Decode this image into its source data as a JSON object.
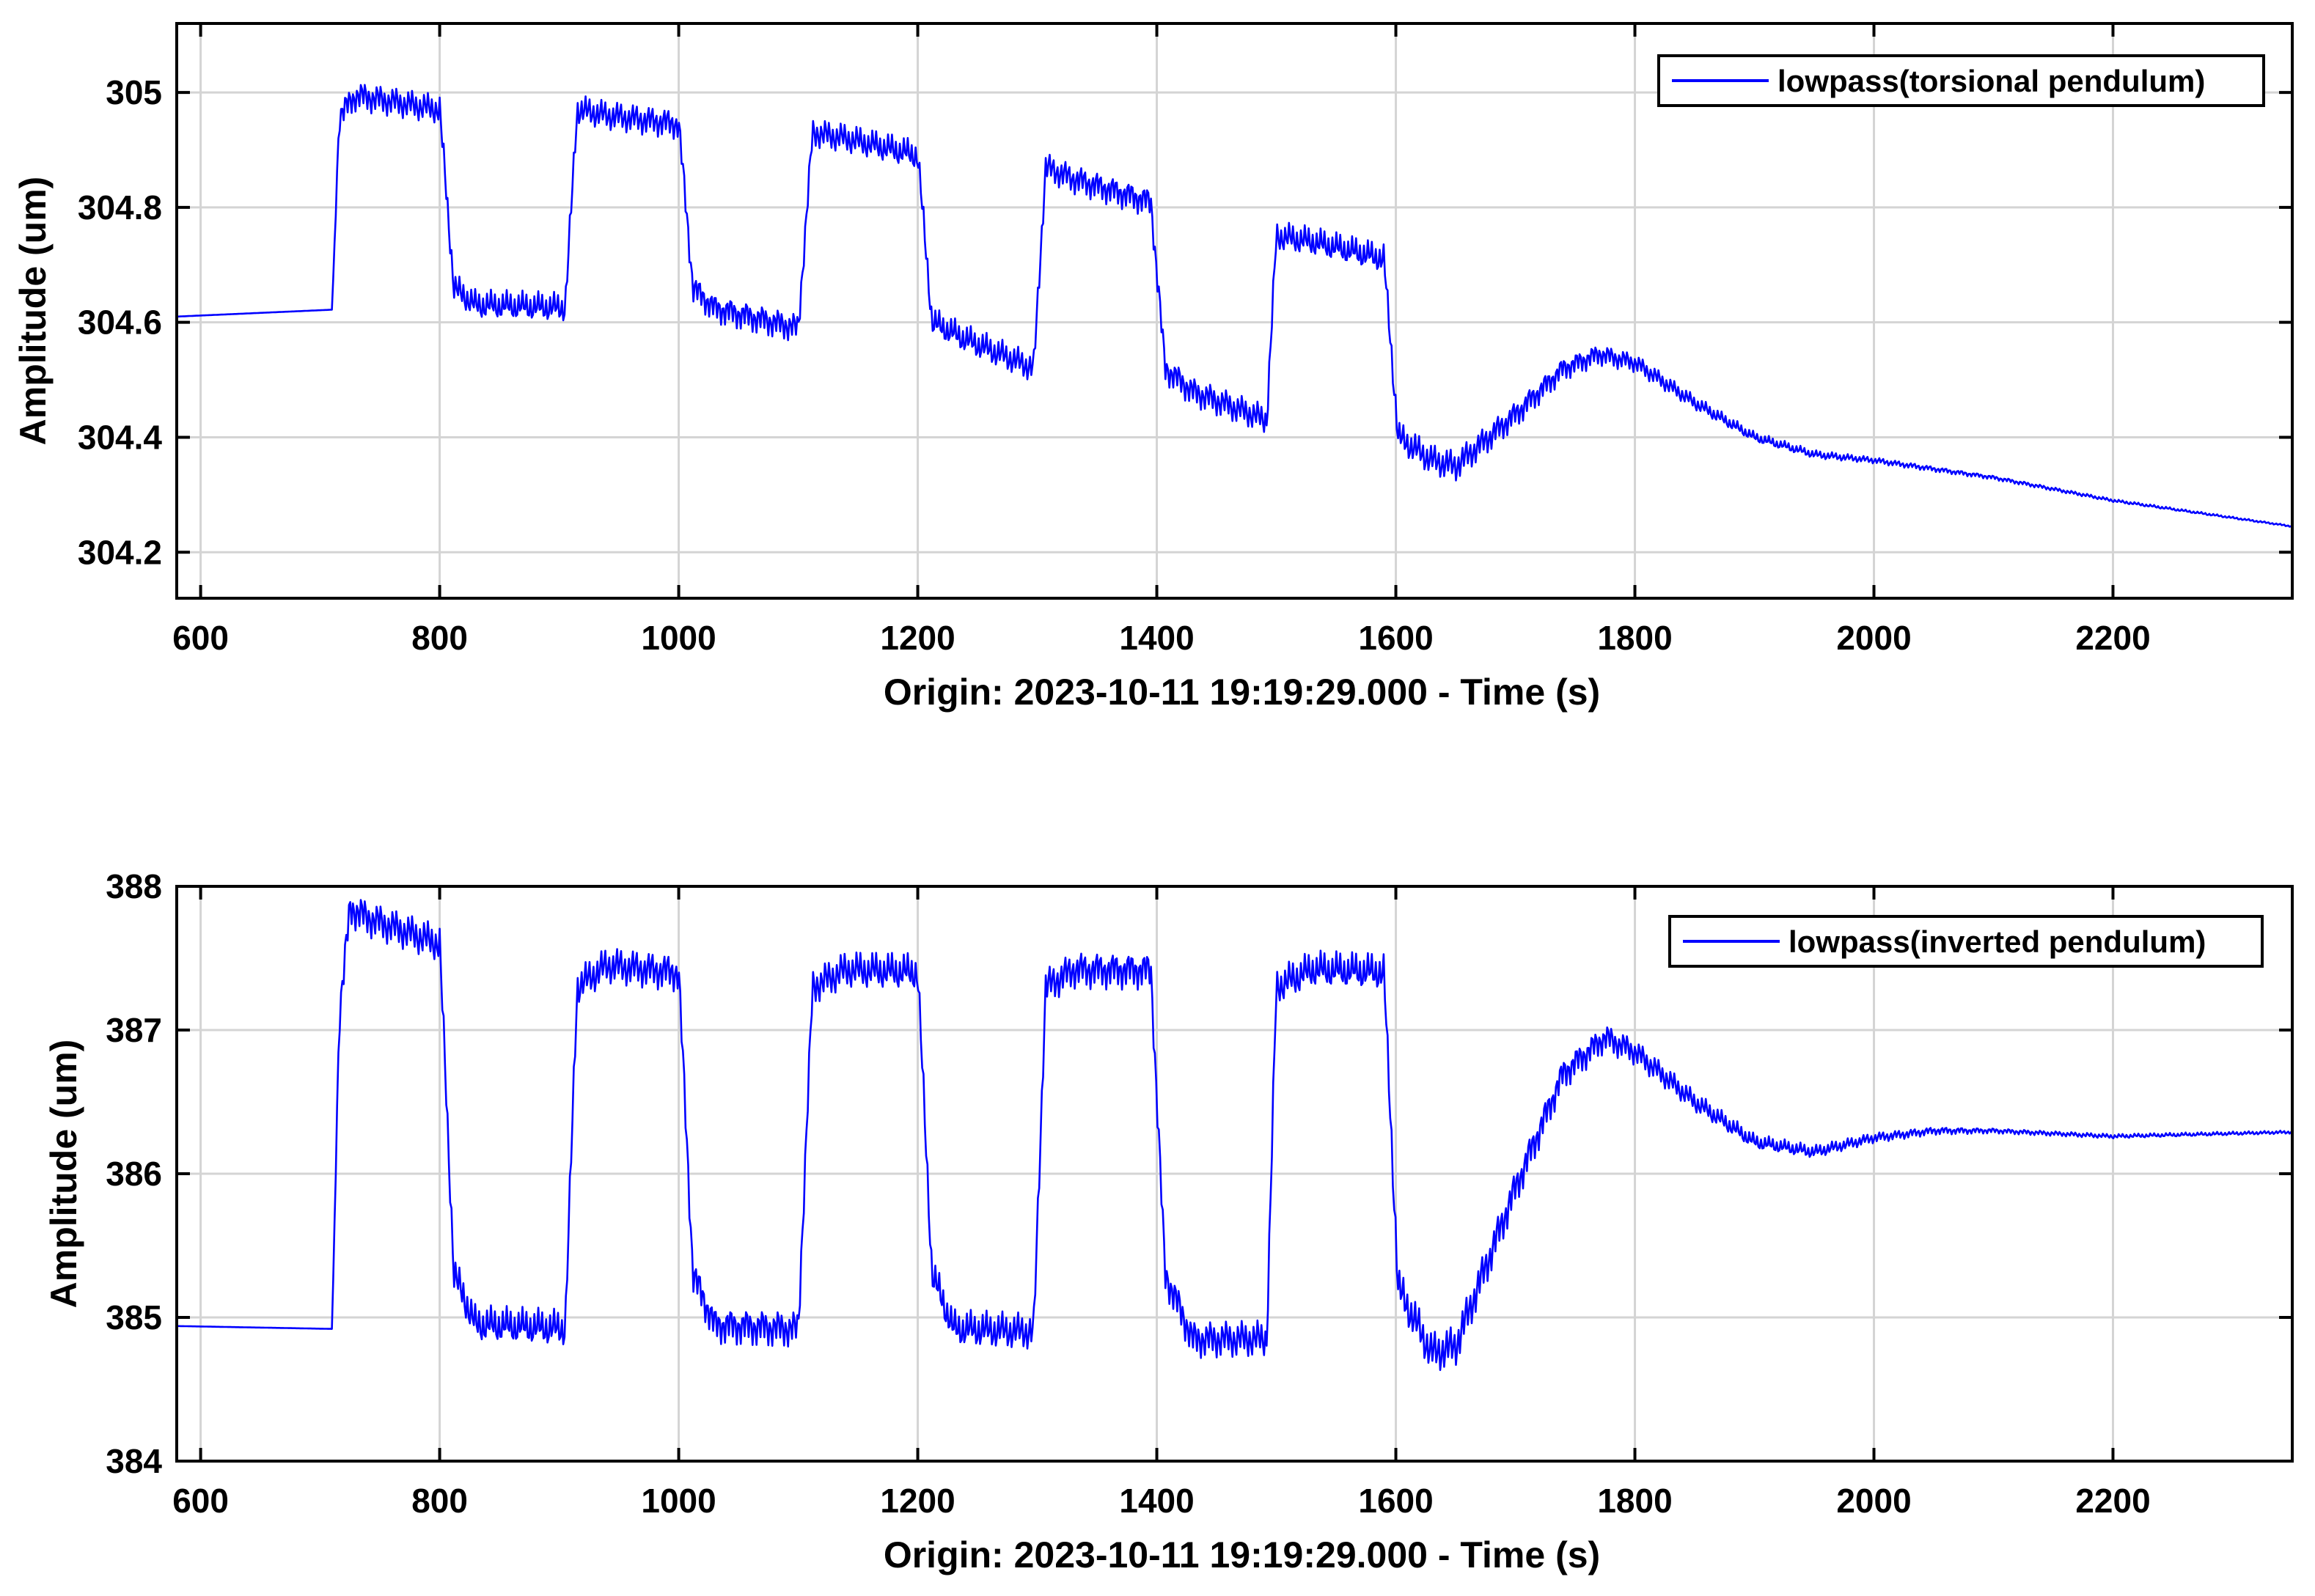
{
  "colors": {
    "series": "#0000ff",
    "grid": "#d4d4d4",
    "axes": "#000000",
    "background": "#ffffff"
  },
  "chart_data": [
    {
      "type": "line",
      "xlabel": "Origin: 2023-10-11 19:19:29.000 - Time  (s)",
      "ylabel": "Amplitude  (um)",
      "xlim": [
        580,
        2350
      ],
      "ylim": [
        304.12,
        305.12
      ],
      "xticks": [
        600,
        800,
        1000,
        1200,
        1400,
        1600,
        1800,
        2000,
        2200
      ],
      "yticks": [
        304.2,
        304.4,
        304.6,
        304.8,
        305
      ],
      "ytick_labels": [
        "304.2",
        "304.4",
        "304.6",
        "304.8",
        "305"
      ],
      "grid": true,
      "legend_position": "top-right",
      "series": [
        {
          "name": "lowpass(torsional pendulum)",
          "keypoints": [
            [
              580,
              304.61
            ],
            [
              710,
              304.622
            ],
            [
              716,
              304.96
            ],
            [
              730,
              304.995
            ],
            [
              800,
              304.97
            ],
            [
              812,
              304.66
            ],
            [
              830,
              304.63
            ],
            [
              905,
              304.625
            ],
            [
              915,
              304.97
            ],
            [
              940,
              304.96
            ],
            [
              1000,
              304.945
            ],
            [
              1012,
              304.66
            ],
            [
              1030,
              304.625
            ],
            [
              1100,
              304.59
            ],
            [
              1112,
              304.93
            ],
            [
              1140,
              304.92
            ],
            [
              1200,
              304.89
            ],
            [
              1212,
              304.6
            ],
            [
              1240,
              304.57
            ],
            [
              1297,
              304.52
            ],
            [
              1307,
              304.87
            ],
            [
              1330,
              304.85
            ],
            [
              1395,
              304.81
            ],
            [
              1407,
              304.52
            ],
            [
              1430,
              304.48
            ],
            [
              1492,
              304.43
            ],
            [
              1500,
              304.75
            ],
            [
              1530,
              304.74
            ],
            [
              1590,
              304.71
            ],
            [
              1602,
              304.4
            ],
            [
              1630,
              304.36
            ],
            [
              1650,
              304.35
            ],
            [
              1700,
              304.44
            ],
            [
              1740,
              304.52
            ],
            [
              1770,
              304.545
            ],
            [
              1800,
              304.53
            ],
            [
              1850,
              304.46
            ],
            [
              1900,
              304.4
            ],
            [
              1950,
              304.37
            ],
            [
              2000,
              304.36
            ],
            [
              2100,
              304.33
            ],
            [
              2200,
              304.29
            ],
            [
              2350,
              304.245
            ]
          ],
          "oscillation": [
            [
              580,
              0
            ],
            [
              710,
              0
            ],
            [
              716,
              0.028
            ],
            [
              1590,
              0.028
            ],
            [
              1602,
              0.03
            ],
            [
              1650,
              0.03
            ],
            [
              1800,
              0.018
            ],
            [
              1900,
              0.01
            ],
            [
              2000,
              0.006
            ],
            [
              2100,
              0.004
            ],
            [
              2350,
              0.0015
            ]
          ]
        }
      ]
    },
    {
      "type": "line",
      "xlabel": "Origin: 2023-10-11 19:19:29.000 - Time  (s)",
      "ylabel": "Amplitude  (um)",
      "xlim": [
        580,
        2350
      ],
      "ylim": [
        384,
        388
      ],
      "xticks": [
        600,
        800,
        1000,
        1200,
        1400,
        1600,
        1800,
        2000,
        2200
      ],
      "yticks": [
        384,
        385,
        386,
        387,
        388
      ],
      "ytick_labels": [
        "384",
        "385",
        "386",
        "387",
        "388"
      ],
      "grid": true,
      "legend_position": "top-right",
      "series": [
        {
          "name": "lowpass(inverted pendulum)",
          "keypoints": [
            [
              580,
              384.94
            ],
            [
              710,
              384.92
            ],
            [
              716,
              387.1
            ],
            [
              725,
              387.85
            ],
            [
              740,
              387.78
            ],
            [
              800,
              387.6
            ],
            [
              812,
              385.3
            ],
            [
              830,
              384.95
            ],
            [
              905,
              384.92
            ],
            [
              915,
              387.3
            ],
            [
              940,
              387.45
            ],
            [
              1000,
              387.4
            ],
            [
              1012,
              385.3
            ],
            [
              1030,
              384.95
            ],
            [
              1100,
              384.92
            ],
            [
              1112,
              387.3
            ],
            [
              1140,
              387.42
            ],
            [
              1200,
              387.4
            ],
            [
              1212,
              385.3
            ],
            [
              1230,
              384.92
            ],
            [
              1297,
              384.9
            ],
            [
              1307,
              387.3
            ],
            [
              1330,
              387.42
            ],
            [
              1395,
              387.42
            ],
            [
              1407,
              385.3
            ],
            [
              1430,
              384.85
            ],
            [
              1492,
              384.85
            ],
            [
              1500,
              387.3
            ],
            [
              1530,
              387.42
            ],
            [
              1590,
              387.4
            ],
            [
              1602,
              385.2
            ],
            [
              1630,
              384.75
            ],
            [
              1650,
              384.8
            ],
            [
              1700,
              385.9
            ],
            [
              1740,
              386.7
            ],
            [
              1775,
              386.95
            ],
            [
              1800,
              386.85
            ],
            [
              1850,
              386.5
            ],
            [
              1900,
              386.22
            ],
            [
              1950,
              386.15
            ],
            [
              2000,
              386.25
            ],
            [
              2050,
              386.3
            ],
            [
              2100,
              386.3
            ],
            [
              2200,
              386.26
            ],
            [
              2350,
              386.29
            ]
          ],
          "oscillation": [
            [
              580,
              0
            ],
            [
              710,
              0
            ],
            [
              716,
              0.14
            ],
            [
              1590,
              0.14
            ],
            [
              1602,
              0.16
            ],
            [
              1660,
              0.16
            ],
            [
              1800,
              0.1
            ],
            [
              1900,
              0.06
            ],
            [
              2000,
              0.04
            ],
            [
              2100,
              0.02
            ],
            [
              2350,
              0.012
            ]
          ]
        }
      ]
    }
  ]
}
